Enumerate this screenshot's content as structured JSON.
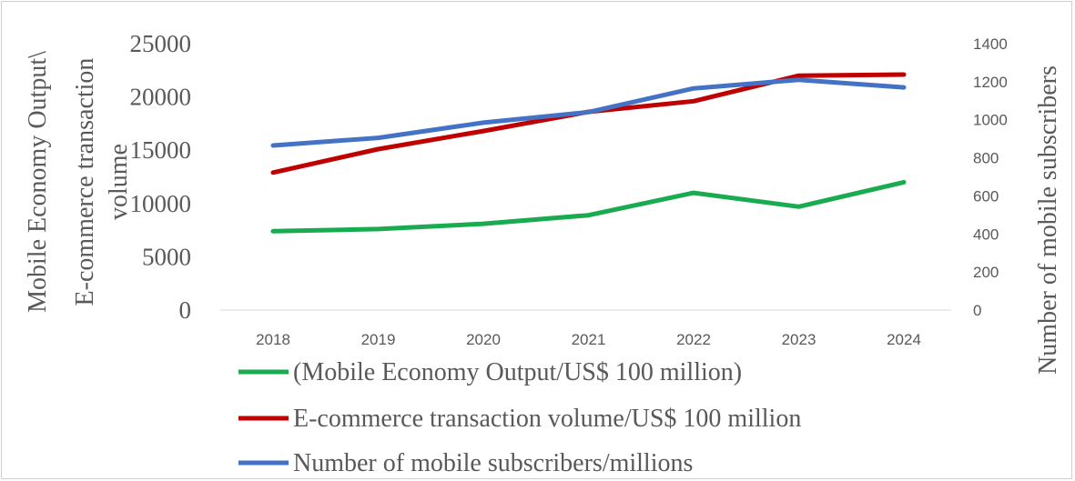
{
  "chart_data": {
    "type": "line",
    "categories": [
      "2018",
      "2019",
      "2020",
      "2021",
      "2022",
      "2023",
      "2024"
    ],
    "series": [
      {
        "name": "(Mobile Economy Output/US$ 100 million)",
        "axis": "left",
        "color": "#1aaa50",
        "values": [
          7400,
          7600,
          8100,
          8900,
          11000,
          9700,
          12000
        ]
      },
      {
        "name": "E-commerce transaction volume/US$ 100 million",
        "axis": "left",
        "color": "#c00000",
        "values": [
          12900,
          15100,
          16800,
          18600,
          19600,
          22000,
          22100
        ]
      },
      {
        "name": "Number of mobile subscribers/millions",
        "axis": "right",
        "color": "#4472c4",
        "values": [
          865,
          905,
          985,
          1040,
          1165,
          1210,
          1170
        ]
      }
    ],
    "ylabel_left_lines": [
      "Mobile Economy Output\\",
      "E-commerce transaction",
      "volume"
    ],
    "ylabel_right": "Number of mobile subscribers",
    "ylim_left": [
      0,
      25000
    ],
    "yticks_left": [
      "0",
      "5000",
      "10000",
      "15000",
      "20000",
      "25000"
    ],
    "ylim_right": [
      0,
      1400
    ],
    "yticks_right": [
      "0",
      "200",
      "400",
      "600",
      "800",
      "1000",
      "1200",
      "1400"
    ],
    "grid": false,
    "legend_position": "bottom"
  }
}
